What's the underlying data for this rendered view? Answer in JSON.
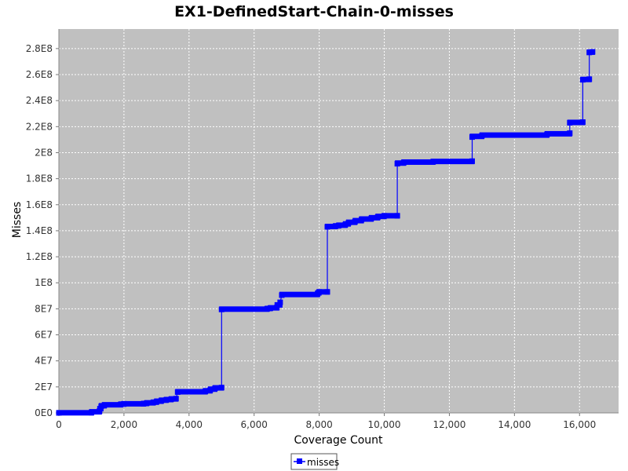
{
  "chart_data": {
    "type": "line",
    "title": "EX1-DefinedStart-Chain-0-misses",
    "xlabel": "Coverage Count",
    "ylabel": "Misses",
    "xlim": [
      0,
      17200
    ],
    "ylim": [
      0,
      295000000
    ],
    "x_ticks": [
      0,
      2000,
      4000,
      6000,
      8000,
      10000,
      12000,
      14000,
      16000
    ],
    "x_tick_labels": [
      "0",
      "2,000",
      "4,000",
      "6,000",
      "8,000",
      "10,000",
      "12,000",
      "14,000",
      "16,000"
    ],
    "y_ticks": [
      0,
      20000000,
      40000000,
      60000000,
      80000000,
      100000000,
      120000000,
      140000000,
      160000000,
      180000000,
      200000000,
      220000000,
      240000000,
      260000000,
      280000000
    ],
    "y_tick_labels": [
      "0E0",
      "2E7",
      "4E7",
      "6E7",
      "8E7",
      "1E8",
      "1.2E8",
      "1.4E8",
      "1.6E8",
      "1.8E8",
      "2E8",
      "2.2E8",
      "2.4E8",
      "2.6E8",
      "2.8E8"
    ],
    "grid": true,
    "legend": "bottom-center",
    "background": "#c0c0c0",
    "series_color": "#0000ff",
    "series": [
      {
        "name": "misses",
        "x": [
          0,
          1000,
          1250,
          1300,
          1400,
          1900,
          2000,
          2600,
          2700,
          2900,
          3000,
          3150,
          3300,
          3450,
          3600,
          3650,
          4500,
          4650,
          4800,
          5000,
          5000,
          6400,
          6500,
          6700,
          6800,
          6850,
          7950,
          8000,
          8250,
          8250,
          8500,
          8600,
          8800,
          8900,
          9100,
          9300,
          9600,
          9800,
          10000,
          10400,
          10400,
          10600,
          11500,
          12700,
          12700,
          13000,
          15000,
          15700,
          15700,
          16100,
          16100,
          16300,
          16300,
          16400
        ],
        "y": [
          0,
          200000,
          1500000,
          5000000,
          6000000,
          6500000,
          7000000,
          7000000,
          7500000,
          8000000,
          8500000,
          9500000,
          10000000,
          10500000,
          11000000,
          16000000,
          16500000,
          17500000,
          19000000,
          19500000,
          79500000,
          80000000,
          80500000,
          81000000,
          85000000,
          90500000,
          91500000,
          93000000,
          93000000,
          143000000,
          143500000,
          144000000,
          144500000,
          146000000,
          147000000,
          148500000,
          149500000,
          150500000,
          151500000,
          151500000,
          191500000,
          192500000,
          193000000,
          193500000,
          212000000,
          213000000,
          214000000,
          215000000,
          223000000,
          223500000,
          256000000,
          256500000,
          277000000,
          277500000
        ]
      }
    ]
  }
}
